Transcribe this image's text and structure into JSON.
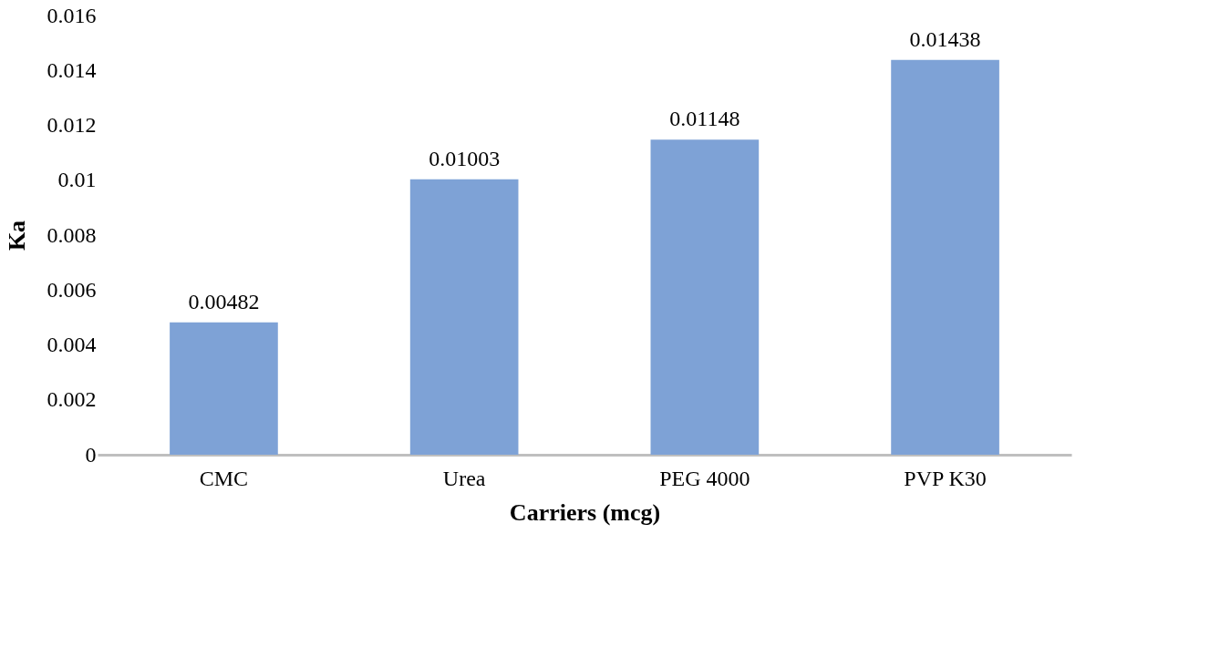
{
  "chart_data": {
    "type": "bar",
    "xlabel": "Carriers (mcg)",
    "ylabel": "Ka",
    "categories": [
      "CMC",
      "Urea",
      "PEG 4000",
      "PVP K30"
    ],
    "values": [
      0.00482,
      0.01003,
      0.01148,
      0.01438
    ],
    "color": "#7ea2d6",
    "ylim": [
      0,
      0.016
    ],
    "yticks": [
      0,
      0.002,
      0.004,
      0.006,
      0.008,
      0.01,
      0.012,
      0.014,
      0.016
    ],
    "grid": false,
    "data_labels": true
  }
}
